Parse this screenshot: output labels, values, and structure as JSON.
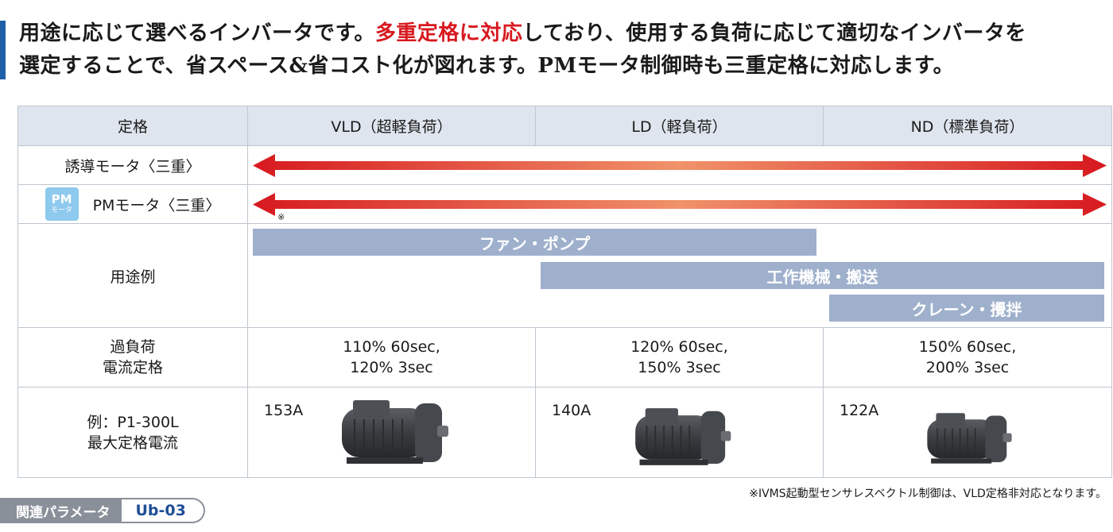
{
  "intro": {
    "line1_a": "用途に応じて選べるインバータです。",
    "line1_highlight": "多重定格に対応",
    "line1_b": "しており、使用する負荷に応じて適切なインバータを",
    "line2": "選定することで、省スペース&省コスト化が図れます。PMモータ制御時も三重定格に対応します。"
  },
  "table": {
    "headers": [
      "定格",
      "VLD（超軽負荷）",
      "LD（軽負荷）",
      "ND（標準負荷）"
    ],
    "rows": {
      "induction_label": "誘導モータ〈三重〉",
      "pm_badge_big": "PM",
      "pm_badge_small": "モータ",
      "pm_label": "PMモータ〈三重〉",
      "pm_note_mark": "※",
      "usage_label": "用途例",
      "usage_bars": [
        "ファン・ポンプ",
        "工作機械・搬送",
        "クレーン・攪拌"
      ],
      "overload_label_1": "過負荷",
      "overload_label_2": "電流定格",
      "overload": [
        {
          "l1": "110% 60sec,",
          "l2": "120% 3sec"
        },
        {
          "l1": "120% 60sec,",
          "l2": "150% 3sec"
        },
        {
          "l1": "150% 60sec,",
          "l2": "200% 3sec"
        }
      ],
      "example_label_1": "例：P1-300L",
      "example_label_2": "最大定格電流",
      "currents": [
        "153A",
        "140A",
        "122A"
      ]
    }
  },
  "footnote": "※IVMS起動型センサレスベクトル制御は、VLD定格非対応となります。",
  "tag": {
    "label": "関連パラメータ",
    "code": "Ub-03"
  },
  "colors": {
    "accent_red": "#d7191f",
    "arrow_mid": "#f0926a",
    "bar_blue": "#9eb0cc",
    "header_bg": "#dfe5ee"
  }
}
